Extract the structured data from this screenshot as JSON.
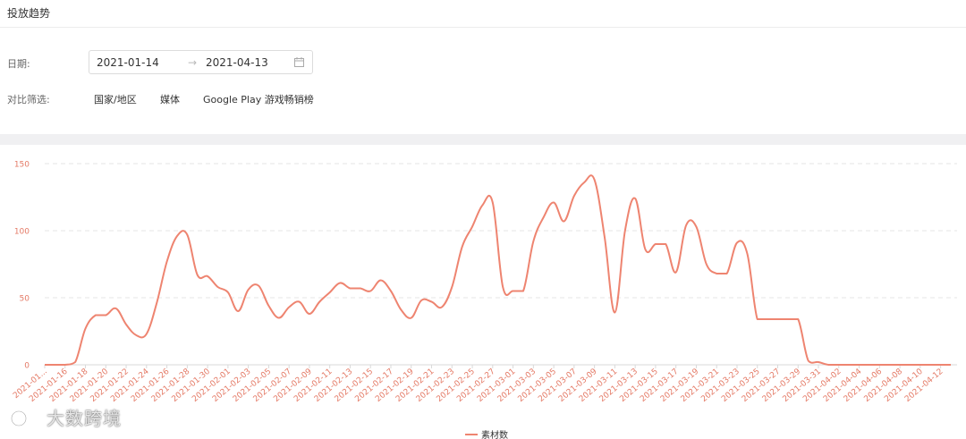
{
  "panel": {
    "title": "投放趋势"
  },
  "filters": {
    "date_label": "日期:",
    "date_start": "2021-01-14",
    "date_arrow": "→",
    "date_end": "2021-04-13",
    "compare_label": "对比筛选:",
    "compare_options": [
      "国家/地区",
      "媒体",
      "Google Play 游戏畅销榜"
    ]
  },
  "watermark": {
    "text": "大数跨境"
  },
  "colors": {
    "series": "#ee8470",
    "axis_text": "#e47a66",
    "grid": "#e6e6e6"
  },
  "chart_data": {
    "type": "line",
    "title": "",
    "xlabel": "",
    "ylabel": "",
    "ylim": [
      0,
      150
    ],
    "yticks": [
      0,
      50,
      100,
      150
    ],
    "grid": true,
    "legend_position": "bottom",
    "x_tick_labels": [
      "2021-01...",
      "2021-01-16",
      "2021-01-18",
      "2021-01-20",
      "2021-01-22",
      "2021-01-24",
      "2021-01-26",
      "2021-01-28",
      "2021-01-30",
      "2021-02-01",
      "2021-02-03",
      "2021-02-05",
      "2021-02-07",
      "2021-02-09",
      "2021-02-11",
      "2021-02-13",
      "2021-02-15",
      "2021-02-17",
      "2021-02-19",
      "2021-02-21",
      "2021-02-23",
      "2021-02-25",
      "2021-02-27",
      "2021-03-01",
      "2021-03-03",
      "2021-03-05",
      "2021-03-07",
      "2021-03-09",
      "2021-03-11",
      "2021-03-13",
      "2021-03-15",
      "2021-03-17",
      "2021-03-19",
      "2021-03-21",
      "2021-03-23",
      "2021-03-25",
      "2021-03-27",
      "2021-03-29",
      "2021-03-31",
      "2021-04-02",
      "2021-04-04",
      "2021-04-06",
      "2021-04-08",
      "2021-04-10",
      "2021-04-12"
    ],
    "x": [
      "2021-01-14",
      "2021-01-15",
      "2021-01-16",
      "2021-01-17",
      "2021-01-18",
      "2021-01-19",
      "2021-01-20",
      "2021-01-21",
      "2021-01-22",
      "2021-01-23",
      "2021-01-24",
      "2021-01-25",
      "2021-01-26",
      "2021-01-27",
      "2021-01-28",
      "2021-01-29",
      "2021-01-30",
      "2021-01-31",
      "2021-02-01",
      "2021-02-02",
      "2021-02-03",
      "2021-02-04",
      "2021-02-05",
      "2021-02-06",
      "2021-02-07",
      "2021-02-08",
      "2021-02-09",
      "2021-02-10",
      "2021-02-11",
      "2021-02-12",
      "2021-02-13",
      "2021-02-14",
      "2021-02-15",
      "2021-02-16",
      "2021-02-17",
      "2021-02-18",
      "2021-02-19",
      "2021-02-20",
      "2021-02-21",
      "2021-02-22",
      "2021-02-23",
      "2021-02-24",
      "2021-02-25",
      "2021-02-26",
      "2021-02-27",
      "2021-02-28",
      "2021-03-01",
      "2021-03-02",
      "2021-03-03",
      "2021-03-04",
      "2021-03-05",
      "2021-03-06",
      "2021-03-07",
      "2021-03-08",
      "2021-03-09",
      "2021-03-10",
      "2021-03-11",
      "2021-03-12",
      "2021-03-13",
      "2021-03-14",
      "2021-03-15",
      "2021-03-16",
      "2021-03-17",
      "2021-03-18",
      "2021-03-19",
      "2021-03-20",
      "2021-03-21",
      "2021-03-22",
      "2021-03-23",
      "2021-03-24",
      "2021-03-25",
      "2021-03-26",
      "2021-03-27",
      "2021-03-28",
      "2021-03-29",
      "2021-03-30",
      "2021-03-31",
      "2021-04-01",
      "2021-04-02",
      "2021-04-03",
      "2021-04-04",
      "2021-04-05",
      "2021-04-06",
      "2021-04-07",
      "2021-04-08",
      "2021-04-09",
      "2021-04-10",
      "2021-04-11",
      "2021-04-12",
      "2021-04-13"
    ],
    "series": [
      {
        "name": "素材数",
        "values": [
          0,
          0,
          0,
          2,
          27,
          37,
          37,
          42,
          30,
          22,
          23,
          46,
          77,
          96,
          97,
          67,
          66,
          58,
          54,
          40,
          56,
          59,
          44,
          35,
          43,
          47,
          38,
          47,
          54,
          61,
          57,
          57,
          55,
          63,
          55,
          41,
          35,
          48,
          47,
          43,
          58,
          88,
          103,
          119,
          121,
          58,
          55,
          55,
          92,
          110,
          121,
          107,
          126,
          136,
          138,
          95,
          39,
          100,
          124,
          86,
          90,
          90,
          69,
          104,
          103,
          75,
          68,
          68,
          91,
          83,
          34,
          34,
          34,
          34,
          34,
          3,
          2,
          0,
          0,
          0,
          0,
          0,
          0,
          0,
          0,
          0,
          0,
          0,
          0,
          0
        ]
      }
    ]
  }
}
